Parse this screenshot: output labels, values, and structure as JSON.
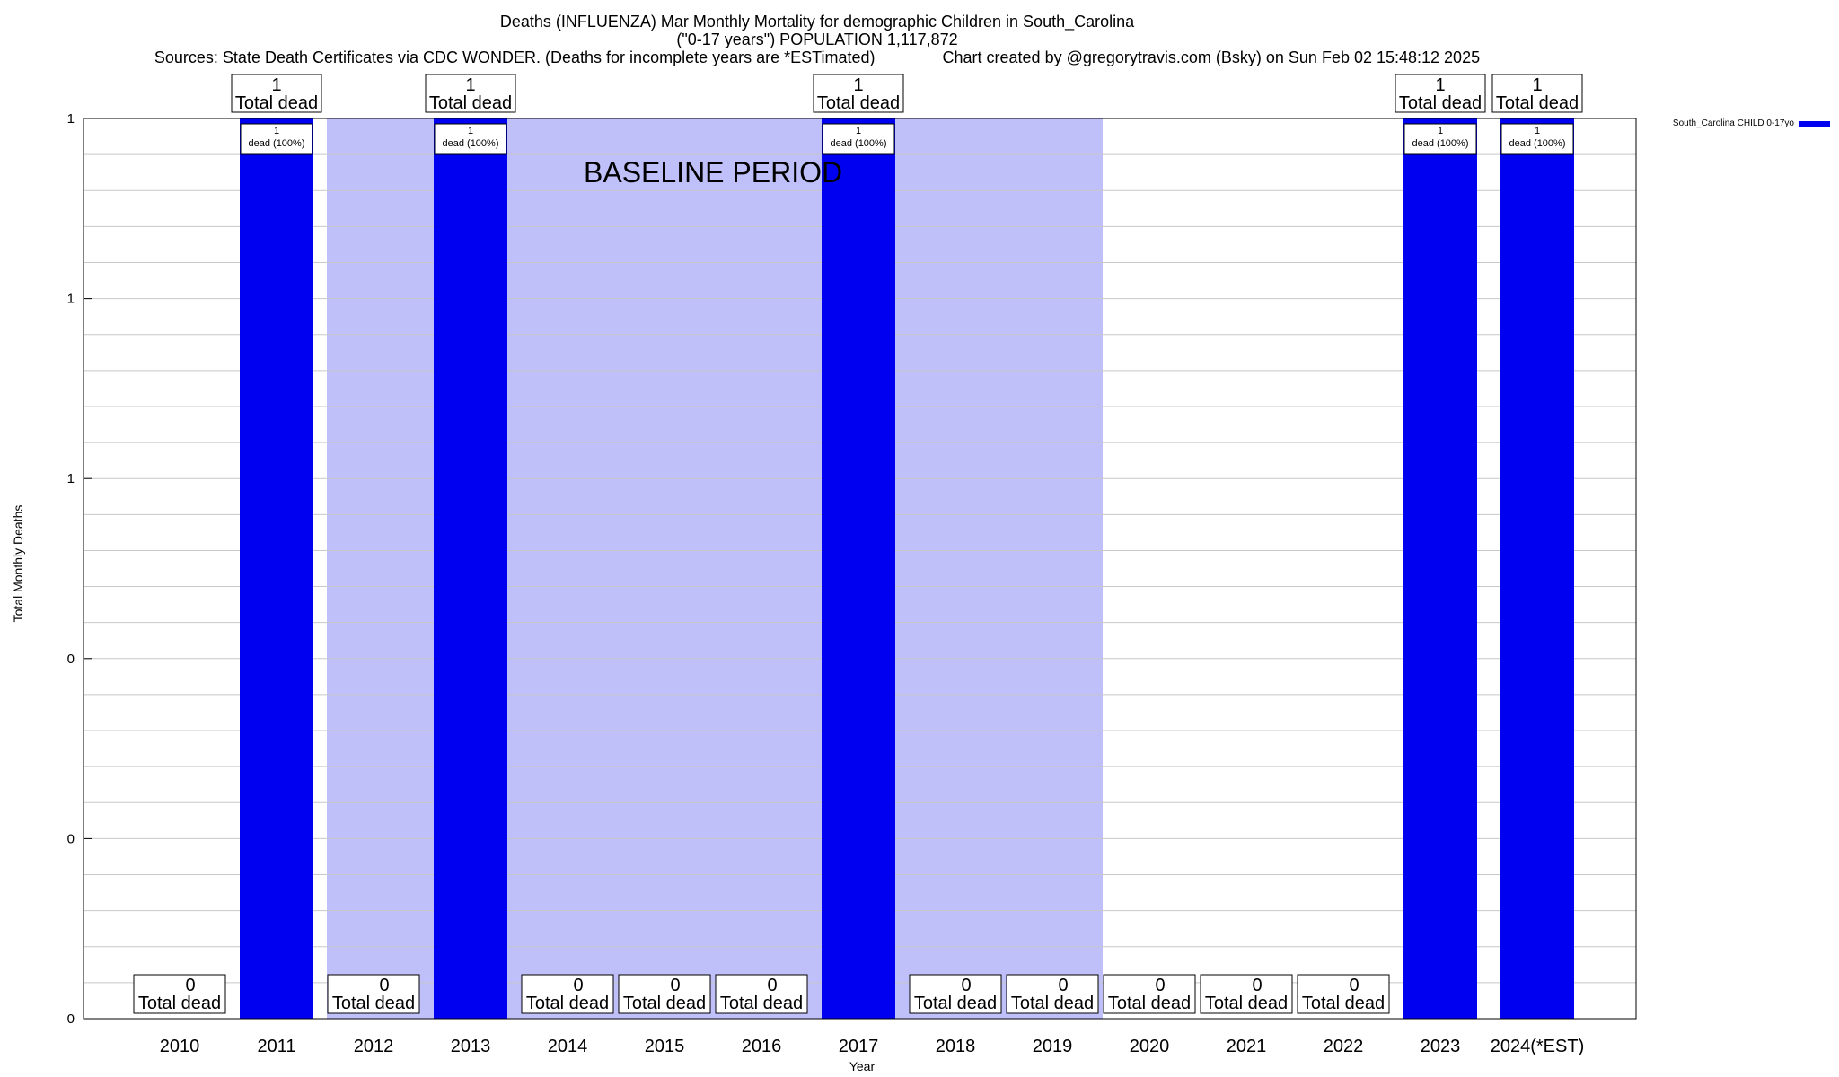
{
  "chart_title": {
    "line1": "Deaths (INFLUENZA) Mar Monthly Mortality for demographic Children in South_Carolina",
    "line2": "(\"0-17 years\") POPULATION 1,117,872",
    "line3": "Sources: State Death Certificates via CDC WONDER. (Deaths for incomplete years are *ESTimated)               Chart created by @gregorytravis.com (Bsky) on Sun Feb 02 15:48:12 2025"
  },
  "chart_data": {
    "type": "bar",
    "title": "Deaths (INFLUENZA) Mar Monthly Mortality for demographic Children in South_Carolina",
    "xlabel": "Year",
    "ylabel": "Total Monthly Deaths",
    "ylim": [
      0,
      1
    ],
    "y_tick_labels": [
      "0",
      "0",
      "0",
      "1",
      "1",
      "1"
    ],
    "categories": [
      "2010",
      "2011",
      "2012",
      "2013",
      "2014",
      "2015",
      "2016",
      "2017",
      "2018",
      "2019",
      "2020",
      "2021",
      "2022",
      "2023",
      "2024(*EST)"
    ],
    "series": [
      {
        "name": "South_Carolina CHILD 0-17yo",
        "color": "#0000f0",
        "values": [
          0,
          1,
          0,
          1,
          0,
          0,
          0,
          1,
          0,
          0,
          0,
          0,
          0,
          1,
          1
        ]
      }
    ],
    "total_label_text": "Total dead",
    "bar_label_text": "dead (100%)",
    "baseline_label": "BASELINE PERIOD",
    "baseline_categories": [
      "2012",
      "2019"
    ],
    "baseline_color": "#bfbffa",
    "grid": true,
    "legend_position": "top-right"
  }
}
